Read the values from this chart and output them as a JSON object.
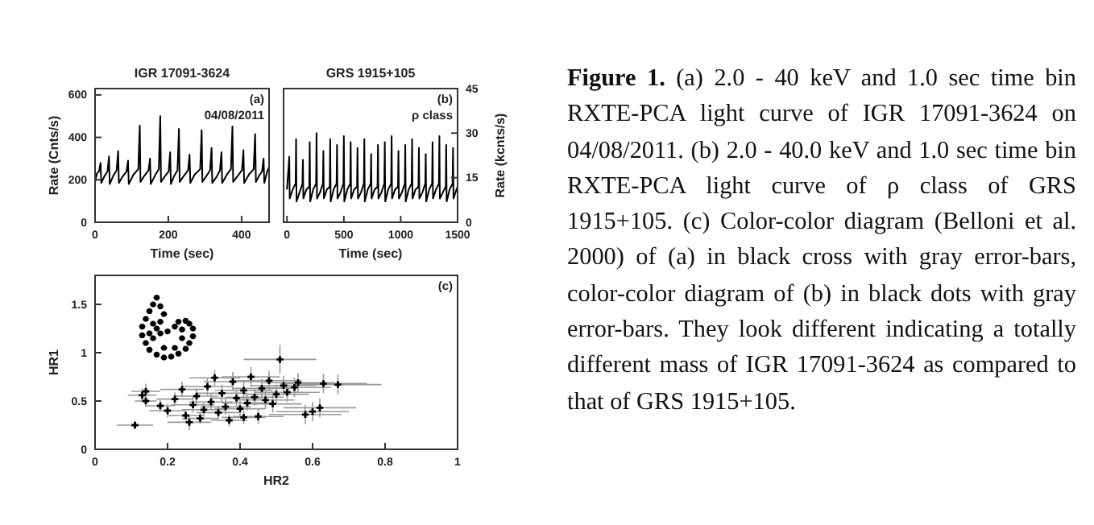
{
  "chart_data": [
    {
      "type": "line",
      "title": "IGR 17091-3624",
      "xlabel": "Time (sec)",
      "ylabel": "Rate (Cnts/s)",
      "annotations": [
        "(a)",
        "04/08/2011"
      ],
      "xlim": [
        0,
        475
      ],
      "ylim": [
        0,
        630
      ],
      "xticks": [
        0,
        200,
        400
      ],
      "yticks": [
        0,
        200,
        400,
        600
      ],
      "marker": "none",
      "line_style": "solid",
      "series": [
        {
          "color": "#000000",
          "x": [
            0,
            5,
            11,
            15,
            17,
            25,
            34,
            38,
            40,
            50,
            59,
            63,
            65,
            75,
            86,
            90,
            92,
            105,
            118,
            122,
            124,
            135,
            146,
            150,
            152,
            165,
            174,
            178,
            180,
            192,
            201,
            205,
            207,
            215,
            225,
            229,
            231,
            243,
            254,
            258,
            260,
            272,
            287,
            291,
            293,
            305,
            314,
            318,
            320,
            332,
            341,
            345,
            347,
            360,
            371,
            375,
            377,
            390,
            401,
            405,
            407,
            420,
            433,
            437,
            439,
            448,
            456,
            460,
            462,
            470,
            475
          ],
          "values": [
            190,
            230,
            240,
            280,
            185,
            215,
            240,
            310,
            180,
            220,
            245,
            336,
            185,
            215,
            240,
            290,
            180,
            225,
            250,
            455,
            190,
            220,
            245,
            300,
            180,
            225,
            250,
            500,
            190,
            220,
            240,
            330,
            180,
            215,
            245,
            440,
            190,
            220,
            245,
            320,
            185,
            225,
            250,
            434,
            190,
            220,
            245,
            350,
            185,
            215,
            245,
            330,
            185,
            225,
            250,
            452,
            190,
            220,
            245,
            340,
            185,
            225,
            250,
            416,
            190,
            220,
            240,
            300,
            185,
            240,
            260
          ]
        }
      ]
    },
    {
      "type": "line",
      "title": "GRS 1915+105",
      "xlabel": "Time (sec)",
      "ylabel": "Rate (kcnts/s)",
      "annotations": [
        "(b)",
        "ρ class"
      ],
      "xlim": [
        -30,
        1500
      ],
      "ylim": [
        0,
        45
      ],
      "xticks": [
        0,
        500,
        1000,
        1500
      ],
      "yticks": [
        0,
        15,
        30,
        45
      ],
      "marker": "none",
      "line_style": "solid",
      "series": [
        {
          "color": "#000000",
          "x": [
            0,
            20,
            24,
            50,
            76,
            80,
            84,
            110,
            136,
            140,
            144,
            170,
            196,
            200,
            204,
            230,
            256,
            260,
            264,
            290,
            316,
            320,
            324,
            350,
            376,
            380,
            384,
            410,
            436,
            440,
            444,
            470,
            496,
            500,
            504,
            530,
            556,
            560,
            564,
            590,
            616,
            620,
            624,
            650,
            676,
            680,
            684,
            710,
            736,
            740,
            744,
            770,
            796,
            800,
            804,
            830,
            856,
            860,
            864,
            890,
            916,
            920,
            924,
            950,
            976,
            980,
            984,
            1010,
            1036,
            1040,
            1044,
            1070,
            1096,
            1100,
            1104,
            1130,
            1156,
            1160,
            1164,
            1190,
            1216,
            1220,
            1224,
            1250,
            1276,
            1280,
            1284,
            1310,
            1336,
            1340,
            1344,
            1370,
            1396,
            1400,
            1404,
            1430,
            1456,
            1460,
            1464,
            1490,
            1500
          ],
          "values": [
            11,
            22,
            8,
            11,
            13,
            28,
            7,
            10,
            13,
            21,
            8,
            11,
            12,
            27,
            7,
            11,
            13,
            30,
            8,
            10,
            13,
            24,
            8,
            11,
            12,
            28,
            7,
            11,
            13,
            26,
            8,
            10,
            13,
            29,
            7,
            11,
            13,
            27,
            8,
            11,
            12,
            25,
            8,
            10,
            13,
            28,
            7,
            11,
            13,
            23,
            8,
            11,
            12,
            26,
            8,
            10,
            13,
            27,
            7,
            11,
            13,
            29,
            8,
            11,
            12,
            24,
            8,
            10,
            13,
            26,
            7,
            11,
            13,
            28,
            8,
            11,
            12,
            25,
            8,
            10,
            13,
            23,
            7,
            11,
            13,
            27,
            8,
            11,
            13,
            29,
            8,
            10,
            12,
            26,
            7,
            11,
            13,
            25,
            8,
            11,
            12
          ]
        }
      ]
    },
    {
      "type": "scatter",
      "xlabel": "HR2",
      "ylabel": "HR1",
      "annotations": [
        "(c)"
      ],
      "xlim": [
        0,
        1
      ],
      "ylim": [
        0,
        1.8
      ],
      "xticks": [
        0,
        0.2,
        0.4,
        0.6,
        0.8,
        1
      ],
      "yticks": [
        0,
        0.5,
        1,
        1.5
      ],
      "series": [
        {
          "color": "#000000",
          "marker": "cross",
          "x": [
            0.11,
            0.14,
            0.14,
            0.13,
            0.18,
            0.2,
            0.22,
            0.24,
            0.25,
            0.27,
            0.28,
            0.3,
            0.31,
            0.32,
            0.34,
            0.35,
            0.36,
            0.38,
            0.39,
            0.4,
            0.41,
            0.42,
            0.43,
            0.44,
            0.45,
            0.46,
            0.47,
            0.48,
            0.49,
            0.5,
            0.51,
            0.52,
            0.53,
            0.55,
            0.56,
            0.58,
            0.6,
            0.62,
            0.63,
            0.67,
            0.41,
            0.37,
            0.29,
            0.33,
            0.26
          ],
          "values": [
            0.25,
            0.6,
            0.5,
            0.56,
            0.45,
            0.4,
            0.52,
            0.62,
            0.35,
            0.46,
            0.55,
            0.41,
            0.65,
            0.49,
            0.38,
            0.58,
            0.44,
            0.7,
            0.53,
            0.42,
            0.61,
            0.48,
            0.75,
            0.54,
            0.34,
            0.63,
            0.51,
            0.71,
            0.47,
            0.57,
            0.93,
            0.66,
            0.59,
            0.64,
            0.69,
            0.36,
            0.39,
            0.43,
            0.68,
            0.67,
            0.33,
            0.3,
            0.32,
            0.74,
            0.28
          ],
          "xerrors": [
            0.05,
            0.04,
            0.03,
            0.04,
            0.04,
            0.05,
            0.05,
            0.06,
            0.05,
            0.06,
            0.06,
            0.06,
            0.07,
            0.06,
            0.06,
            0.07,
            0.07,
            0.08,
            0.07,
            0.07,
            0.08,
            0.07,
            0.08,
            0.08,
            0.07,
            0.08,
            0.08,
            0.09,
            0.08,
            0.09,
            0.1,
            0.09,
            0.09,
            0.1,
            0.1,
            0.1,
            0.1,
            0.1,
            0.12,
            0.12,
            0.06,
            0.05,
            0.05,
            0.07,
            0.06
          ],
          "errors": [
            0.04,
            0.08,
            0.06,
            0.07,
            0.06,
            0.07,
            0.07,
            0.08,
            0.06,
            0.08,
            0.08,
            0.07,
            0.09,
            0.08,
            0.07,
            0.09,
            0.08,
            0.1,
            0.08,
            0.08,
            0.09,
            0.08,
            0.1,
            0.09,
            0.08,
            0.1,
            0.09,
            0.1,
            0.09,
            0.1,
            0.15,
            0.1,
            0.1,
            0.1,
            0.1,
            0.1,
            0.1,
            0.1,
            0.1,
            0.1,
            0.07,
            0.06,
            0.06,
            0.08,
            0.08
          ]
        },
        {
          "color": "#000000",
          "marker": "circle",
          "x": [
            0.17,
            0.16,
            0.15,
            0.14,
            0.13,
            0.13,
            0.14,
            0.15,
            0.17,
            0.19,
            0.21,
            0.23,
            0.25,
            0.26,
            0.27,
            0.27,
            0.26,
            0.25,
            0.23,
            0.22,
            0.2,
            0.18,
            0.17,
            0.18,
            0.19,
            0.18,
            0.16,
            0.19,
            0.22,
            0.24,
            0.16,
            0.15,
            0.24
          ],
          "values": [
            1.57,
            1.5,
            1.43,
            1.35,
            1.27,
            1.18,
            1.1,
            1.03,
            0.98,
            0.95,
            0.96,
            0.99,
            1.04,
            1.1,
            1.17,
            1.25,
            1.3,
            1.33,
            1.32,
            1.27,
            1.22,
            1.2,
            1.25,
            1.32,
            1.4,
            1.48,
            1.15,
            1.05,
            1.05,
            1.15,
            1.3,
            1.2,
            1.24
          ],
          "xerrors": [
            0.01,
            0.01,
            0.01,
            0.01,
            0.01,
            0.01,
            0.01,
            0.01,
            0.01,
            0.01,
            0.01,
            0.01,
            0.01,
            0.01,
            0.01,
            0.01,
            0.01,
            0.01,
            0.01,
            0.01,
            0.01,
            0.01,
            0.01,
            0.01,
            0.01,
            0.01,
            0.01,
            0.01,
            0.01,
            0.01,
            0.01,
            0.01,
            0.01
          ],
          "errors": [
            0.03,
            0.03,
            0.03,
            0.03,
            0.03,
            0.03,
            0.03,
            0.03,
            0.03,
            0.03,
            0.03,
            0.03,
            0.03,
            0.03,
            0.03,
            0.03,
            0.03,
            0.03,
            0.03,
            0.03,
            0.03,
            0.03,
            0.03,
            0.03,
            0.03,
            0.03,
            0.03,
            0.03,
            0.03,
            0.03,
            0.03,
            0.03,
            0.03
          ]
        }
      ]
    },
    {
      "type": "other",
      "annotations": [
        "Figure 1.",
        "(a) 2.0 - 40 keV and 1.0 sec time bin RXTE-PCA light curve of IGR 17091-3624 on 04/08/2011. (b) 2.0 - 40.0 keV and 1.0 sec time bin RXTE-PCA light curve of ρ class of GRS 1915+105.  (c) Color-color diagram (Belloni et al. 2000) of (a) in black cross with gray error-bars, color-color diagram of (b) in black dots with gray error-bars.  They look different indicating a totally different mass of IGR 17091-3624 as compared to that of GRS 1915+105."
      ]
    }
  ]
}
